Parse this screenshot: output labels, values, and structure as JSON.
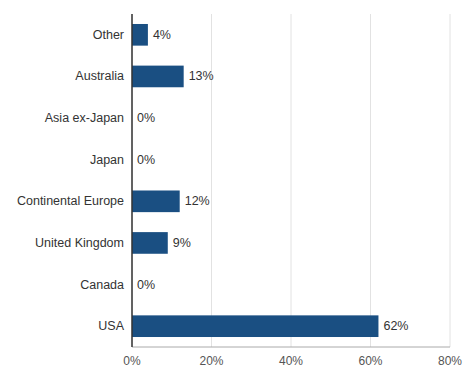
{
  "chart_data": {
    "type": "bar",
    "orientation": "horizontal",
    "categories": [
      "USA",
      "Canada",
      "United Kingdom",
      "Continental Europe",
      "Japan",
      "Asia ex-Japan",
      "Australia",
      "Other"
    ],
    "values": [
      62,
      0,
      9,
      12,
      0,
      0,
      13,
      4
    ],
    "value_labels": [
      "62%",
      "0%",
      "9%",
      "12%",
      "0%",
      "0%",
      "13%",
      "4%"
    ],
    "data_labels": true,
    "color": "#1a4f82",
    "xlim": [
      0,
      80
    ],
    "xticks": [
      {
        "value": 0,
        "label": "0%"
      },
      {
        "value": 20,
        "label": "20%"
      },
      {
        "value": 40,
        "label": "40%"
      },
      {
        "value": 60,
        "label": "60%"
      },
      {
        "value": 80,
        "label": "80%"
      }
    ],
    "grid": true
  }
}
